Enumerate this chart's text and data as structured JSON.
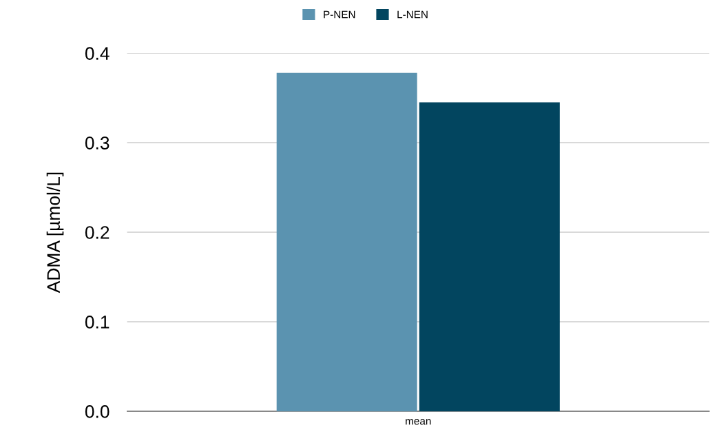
{
  "chart_data": {
    "type": "bar",
    "ylabel": "ADMA [µmol/L]",
    "categories": [
      "mean"
    ],
    "series": [
      {
        "name": "P-NEN",
        "color": "#5b93b0",
        "values": [
          0.378
        ]
      },
      {
        "name": "L-NEN",
        "color": "#02455f",
        "values": [
          0.345
        ]
      }
    ],
    "ylim": [
      0,
      0.4
    ],
    "yticks": [
      {
        "value": 0,
        "label": "0.0"
      },
      0.1,
      0.2,
      0.3,
      0.4
    ],
    "grid": "y",
    "legend": "top"
  }
}
